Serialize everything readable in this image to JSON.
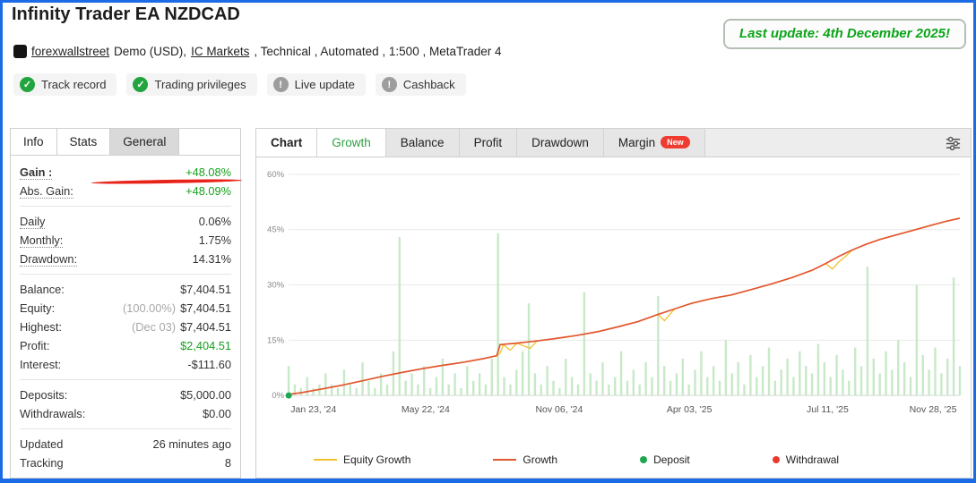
{
  "page": {
    "title": "Infinity Trader EA NZDCAD",
    "last_update": "Last update: 4th December 2025!"
  },
  "subtitle": {
    "account_link": "forexwallstreet",
    "demo_text": "Demo (USD),",
    "broker_link": "IC Markets",
    "rest": ", Technical , Automated , 1:500 , MetaTrader 4"
  },
  "badges": [
    {
      "label": "Track record",
      "status": "ok"
    },
    {
      "label": "Trading privileges",
      "status": "ok"
    },
    {
      "label": "Live update",
      "status": "neutral"
    },
    {
      "label": "Cashback",
      "status": "neutral"
    }
  ],
  "info_panel": {
    "tabs": [
      {
        "label": "Info",
        "style": "white"
      },
      {
        "label": "Stats",
        "style": "white"
      },
      {
        "label": "General",
        "style": "gray"
      }
    ],
    "groups": [
      [
        {
          "label": "Gain :",
          "value": "+48.08%",
          "value_color": "green",
          "dotted": true,
          "bold": true,
          "annotated": true
        },
        {
          "label": "Abs. Gain:",
          "value": "+48.09%",
          "value_color": "green",
          "dotted": true
        }
      ],
      [
        {
          "label": "Daily",
          "value": "0.06%",
          "dotted": true
        },
        {
          "label": "Monthly:",
          "value": "1.75%",
          "dotted": true
        },
        {
          "label": "Drawdown:",
          "value": "14.31%",
          "dotted": true
        }
      ],
      [
        {
          "label": "Balance:",
          "value": "$7,404.51"
        },
        {
          "label": "Equity:",
          "prefix": "(100.00%)",
          "value": "$7,404.51"
        },
        {
          "label": "Highest:",
          "prefix": "(Dec 03)",
          "value": "$7,404.51"
        },
        {
          "label": "Profit:",
          "value": "$2,404.51",
          "value_color": "green"
        },
        {
          "label": "Interest:",
          "value": "-$111.60"
        }
      ],
      [
        {
          "label": "Deposits:",
          "value": "$5,000.00"
        },
        {
          "label": "Withdrawals:",
          "value": "$0.00"
        }
      ],
      [
        {
          "label": "Updated",
          "value": "26 minutes ago"
        },
        {
          "label": "Tracking",
          "value": "8"
        }
      ]
    ]
  },
  "chart_panel": {
    "tabs": [
      {
        "label": "Chart",
        "style": "white-bold"
      },
      {
        "label": "Growth",
        "style": "active-green"
      },
      {
        "label": "Balance",
        "style": "gray"
      },
      {
        "label": "Profit",
        "style": "gray"
      },
      {
        "label": "Drawdown",
        "style": "gray"
      },
      {
        "label": "Margin",
        "style": "gray",
        "badge": "New"
      }
    ],
    "legend": [
      {
        "label": "Equity Growth",
        "swatch": "line",
        "color": "#f2c12e"
      },
      {
        "label": "Growth",
        "swatch": "line",
        "color": "#e2572f"
      },
      {
        "label": "Deposit",
        "swatch": "dot",
        "color": "#1fa750"
      },
      {
        "label": "Withdrawal",
        "swatch": "dot",
        "color": "#e8392b"
      }
    ]
  },
  "chart_data": {
    "type": "line",
    "title": "Growth",
    "xlabel": "",
    "ylabel": "",
    "ylim": [
      0,
      60
    ],
    "yticks": [
      0,
      15,
      30,
      45,
      60
    ],
    "ytick_labels": [
      "0%",
      "15%",
      "30%",
      "45%",
      "60%"
    ],
    "xtick_labels": [
      "Jan 23, '24",
      "May 22, '24",
      "Nov 06, '24",
      "Apr 03, '25",
      "Jul 11, '25",
      "Nov 28, '25"
    ],
    "xtick_pos": [
      0.037,
      0.204,
      0.403,
      0.597,
      0.803,
      0.96
    ],
    "grid": "horizontal",
    "legend_position": "bottom",
    "series": [
      {
        "name": "Equity Growth",
        "color": "#f2c12e",
        "points": [
          [
            0,
            0.3
          ],
          [
            0.02,
            0.8
          ],
          [
            0.05,
            1.8
          ],
          [
            0.08,
            2.8
          ],
          [
            0.11,
            4
          ],
          [
            0.14,
            5.2
          ],
          [
            0.17,
            6.3
          ],
          [
            0.2,
            7.3
          ],
          [
            0.23,
            8.2
          ],
          [
            0.26,
            9
          ],
          [
            0.29,
            10
          ],
          [
            0.31,
            10.8
          ],
          [
            0.315,
            11.5
          ],
          [
            0.32,
            13.8
          ],
          [
            0.33,
            12.3
          ],
          [
            0.34,
            14.2
          ],
          [
            0.36,
            12.8
          ],
          [
            0.37,
            14.8
          ],
          [
            0.4,
            15.5
          ],
          [
            0.43,
            16.3
          ],
          [
            0.46,
            17.3
          ],
          [
            0.49,
            18.6
          ],
          [
            0.52,
            20
          ],
          [
            0.55,
            22
          ],
          [
            0.56,
            20.3
          ],
          [
            0.575,
            23.5
          ],
          [
            0.6,
            25
          ],
          [
            0.63,
            26.3
          ],
          [
            0.66,
            27.3
          ],
          [
            0.69,
            28.8
          ],
          [
            0.72,
            30.3
          ],
          [
            0.75,
            32
          ],
          [
            0.78,
            34
          ],
          [
            0.8,
            35.8
          ],
          [
            0.81,
            34.3
          ],
          [
            0.82,
            36.3
          ],
          [
            0.83,
            37.8
          ],
          [
            0.84,
            39.5
          ],
          [
            0.86,
            41
          ],
          [
            0.88,
            42.3
          ],
          [
            0.9,
            43.3
          ],
          [
            0.93,
            44.8
          ],
          [
            0.96,
            46.3
          ],
          [
            0.98,
            47.3
          ],
          [
            1,
            48.1
          ]
        ]
      },
      {
        "name": "Growth",
        "color": "#e2572f",
        "points": [
          [
            0,
            0.3
          ],
          [
            0.02,
            0.8
          ],
          [
            0.05,
            1.8
          ],
          [
            0.08,
            2.8
          ],
          [
            0.11,
            4
          ],
          [
            0.14,
            5.2
          ],
          [
            0.17,
            6.3
          ],
          [
            0.2,
            7.3
          ],
          [
            0.23,
            8.2
          ],
          [
            0.26,
            9
          ],
          [
            0.29,
            10
          ],
          [
            0.31,
            10.8
          ],
          [
            0.315,
            13.8
          ],
          [
            0.34,
            14.2
          ],
          [
            0.37,
            14.8
          ],
          [
            0.4,
            15.5
          ],
          [
            0.43,
            16.3
          ],
          [
            0.46,
            17.3
          ],
          [
            0.49,
            18.6
          ],
          [
            0.52,
            20
          ],
          [
            0.55,
            22
          ],
          [
            0.575,
            23.5
          ],
          [
            0.6,
            25
          ],
          [
            0.63,
            26.3
          ],
          [
            0.66,
            27.3
          ],
          [
            0.69,
            28.8
          ],
          [
            0.72,
            30.3
          ],
          [
            0.75,
            32
          ],
          [
            0.78,
            34
          ],
          [
            0.8,
            35.8
          ],
          [
            0.82,
            37.8
          ],
          [
            0.84,
            39.5
          ],
          [
            0.86,
            41
          ],
          [
            0.88,
            42.3
          ],
          [
            0.9,
            43.3
          ],
          [
            0.93,
            44.8
          ],
          [
            0.96,
            46.3
          ],
          [
            0.98,
            47.3
          ],
          [
            1,
            48.1
          ]
        ]
      }
    ],
    "bars": {
      "name": "trade-bars",
      "color": "#c2e7c2",
      "values": [
        8,
        3,
        2,
        5,
        2,
        3,
        6,
        3,
        2,
        7,
        3,
        2,
        9,
        4,
        2,
        6,
        3,
        12,
        43,
        4,
        6,
        3,
        8,
        2,
        5,
        10,
        3,
        6,
        2,
        8,
        4,
        6,
        3,
        10,
        44,
        5,
        3,
        7,
        12,
        25,
        6,
        3,
        8,
        4,
        2,
        10,
        5,
        3,
        28,
        6,
        4,
        9,
        3,
        5,
        12,
        4,
        7,
        3,
        9,
        5,
        27,
        8,
        4,
        6,
        10,
        3,
        7,
        12,
        5,
        8,
        4,
        15,
        6,
        9,
        3,
        11,
        5,
        8,
        13,
        4,
        7,
        10,
        5,
        12,
        8,
        6,
        14,
        9,
        5,
        11,
        7,
        4,
        13,
        8,
        35,
        10,
        6,
        12,
        7,
        15,
        9,
        5,
        30,
        11,
        7,
        13,
        6,
        10,
        32,
        8
      ]
    },
    "markers": [
      {
        "type": "deposit",
        "x": 0,
        "y": 0,
        "color": "#1fa750"
      }
    ]
  },
  "colors": {
    "page_border_blue": "#1d6ae5",
    "gain_green": "#16a11d",
    "update_green": "#0ca419",
    "annotation_red": "#e8231a",
    "active_tab_green": "#2f9e44"
  }
}
